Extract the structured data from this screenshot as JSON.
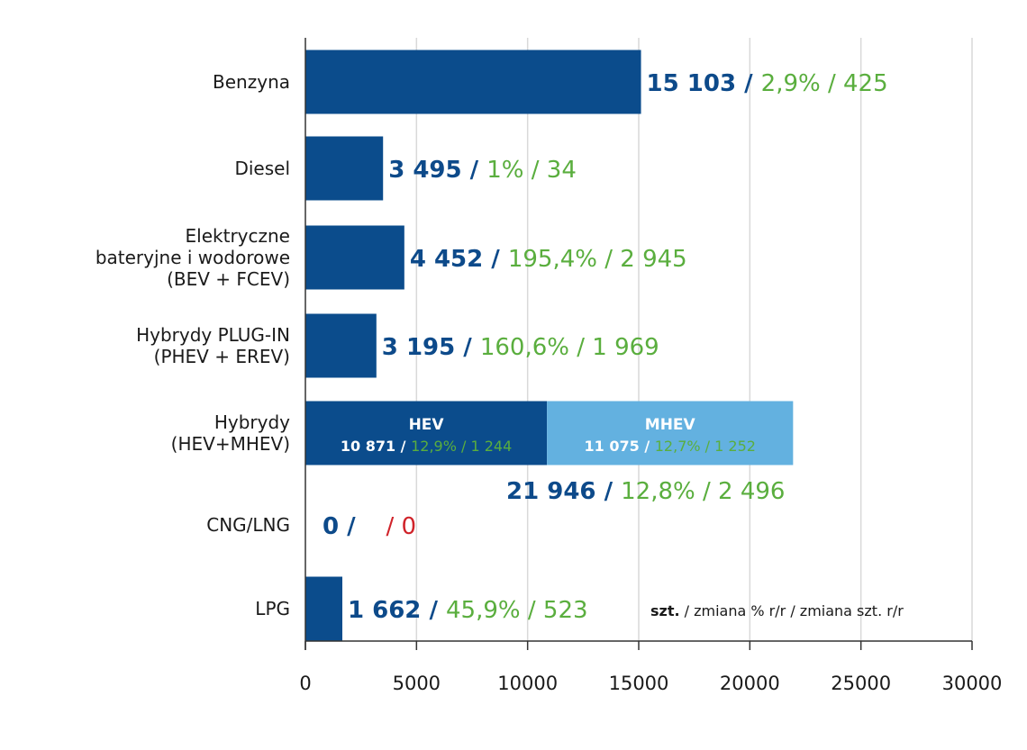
{
  "chart_data": {
    "type": "bar",
    "orientation": "horizontal",
    "title": "",
    "xlabel": "",
    "ylabel": "",
    "xlim": [
      0,
      30000
    ],
    "xticks": [
      "0",
      "5000",
      "10000",
      "15000",
      "20000",
      "25000",
      "30000"
    ],
    "grid": true,
    "colors": {
      "bar": "#0b4c8c",
      "bar_light": "#63b1e0",
      "value": "#0d4a8a",
      "change": "#5aae3e",
      "negative": "#d0232a",
      "text": "#1a1a1a",
      "grid": "#d9d9d9",
      "axis": "#333333"
    },
    "categories": [
      {
        "label": [
          "Benzyna"
        ],
        "value": 15103,
        "value_text": "15 103",
        "pct": "2,9%",
        "change": "425"
      },
      {
        "label": [
          "Diesel"
        ],
        "value": 3495,
        "value_text": "3 495",
        "pct": "1%",
        "change": "34"
      },
      {
        "label": [
          "Elektryczne",
          "bateryjne i wodorowe",
          "(BEV + FCEV)"
        ],
        "value": 4452,
        "value_text": "4 452",
        "pct": "195,4%",
        "change": "2 945"
      },
      {
        "label": [
          "Hybrydy PLUG-IN",
          "(PHEV + EREV)"
        ],
        "value": 3195,
        "value_text": "3 195",
        "pct": "160,6%",
        "change": "1 969"
      },
      {
        "label": [
          "Hybrydy",
          "(HEV+MHEV)"
        ],
        "value": 21946,
        "value_text": "21 946",
        "pct": "12,8%",
        "change": "2 496",
        "segments": [
          {
            "name": "HEV",
            "value": 10871,
            "value_text": "10 871",
            "pct": "12,9%",
            "change": "1 244"
          },
          {
            "name": "MHEV",
            "value": 11075,
            "value_text": "11 075",
            "pct": "12,7%",
            "change": "1 252"
          }
        ]
      },
      {
        "label": [
          "CNG/LNG"
        ],
        "value": 0,
        "value_text": "0",
        "pct": "",
        "change": "0",
        "change_negative": true
      },
      {
        "label": [
          "LPG"
        ],
        "value": 1662,
        "value_text": "1 662",
        "pct": "45,9%",
        "change": "523"
      }
    ],
    "legend_note": {
      "bold": "szt.",
      "rest": " / zmiana % r/r / zmiana szt. r/r"
    }
  }
}
